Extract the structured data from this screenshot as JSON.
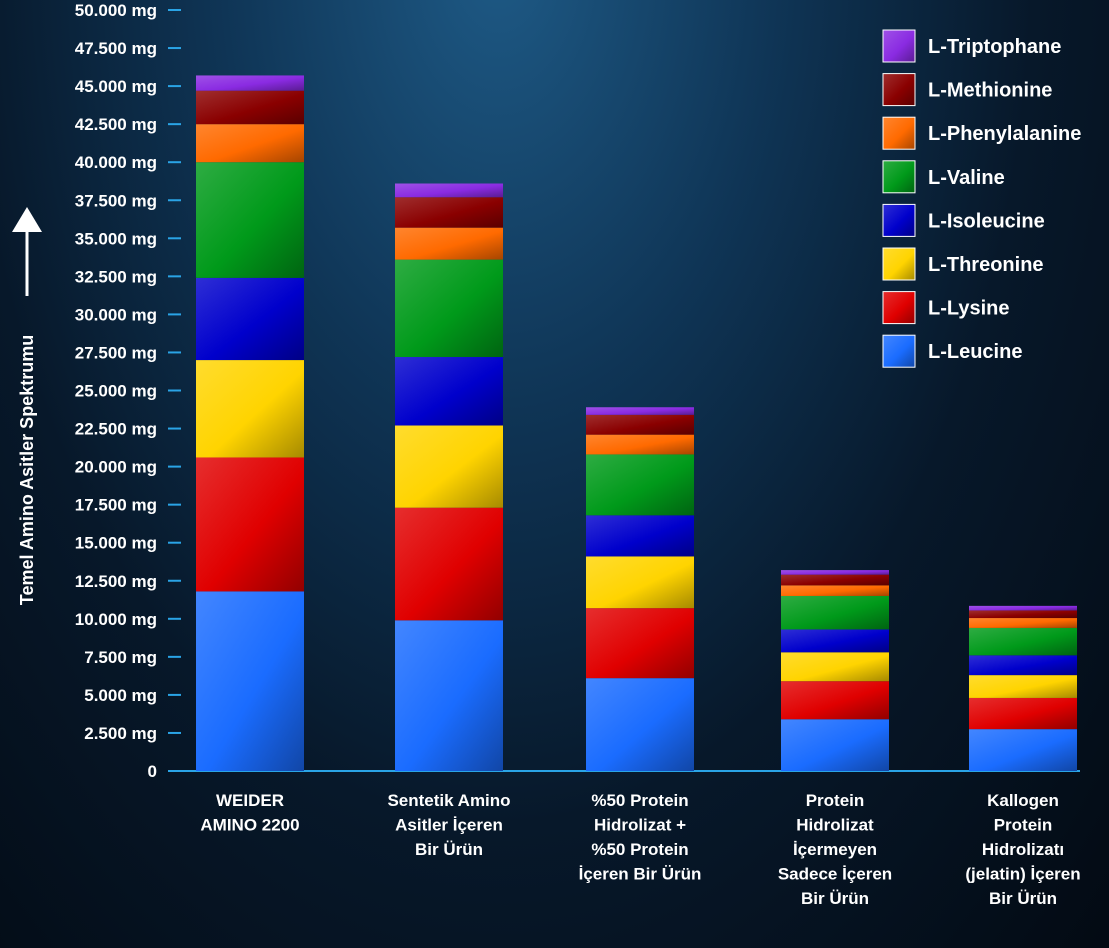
{
  "chart_data": {
    "type": "bar",
    "stacked": true,
    "ylabel": "Temel Amino Asitler Spektrumu",
    "ylim": [
      0,
      50000
    ],
    "yticks": [
      "0",
      "2.500 mg",
      "5.000 mg",
      "7.500 mg",
      "10.000 mg",
      "12.500 mg",
      "15.000 mg",
      "17.500 mg",
      "20.000 mg",
      "22.500 mg",
      "25.000 mg",
      "27.500 mg",
      "30.000 mg",
      "32.500 mg",
      "35.000 mg",
      "37.500 mg",
      "40.000 mg",
      "42.500 mg",
      "45.000 mg",
      "47.500 mg",
      "50.000 mg"
    ],
    "categories": [
      [
        "WEIDER",
        "AMINO 2200"
      ],
      [
        "Sentetik Amino",
        "Asitler İçeren",
        "Bir Ürün"
      ],
      [
        "%50 Protein",
        "Hidrolizat +",
        "%50 Protein",
        "İçeren Bir Ürün"
      ],
      [
        "Protein",
        "Hidrolizat",
        "İçermeyen",
        "Sadece İçeren",
        "Bir Ürün"
      ],
      [
        "Kallogen",
        "Protein",
        "Hidrolizatı",
        "(jelatin) İçeren",
        "Bir Ürün"
      ]
    ],
    "series": [
      {
        "name": "L-Leucine",
        "color": "#1a6cff",
        "values": [
          11800,
          9900,
          6100,
          3400,
          2750
        ]
      },
      {
        "name": "L-Lysine",
        "color": "#e00000",
        "values": [
          8800,
          7400,
          4600,
          2500,
          2050
        ]
      },
      {
        "name": "L-Threonine",
        "color": "#ffd400",
        "values": [
          6400,
          5400,
          3400,
          1900,
          1500
        ]
      },
      {
        "name": "L-Isoleucine",
        "color": "#0000cc",
        "values": [
          5400,
          4500,
          2700,
          1500,
          1300
        ]
      },
      {
        "name": "L-Valine",
        "color": "#009a1a",
        "values": [
          7600,
          6400,
          4000,
          2200,
          1800
        ]
      },
      {
        "name": "L-Phenylalanine",
        "color": "#ff6a00",
        "values": [
          2500,
          2100,
          1300,
          700,
          650
        ]
      },
      {
        "name": "L-Methionine",
        "color": "#8a0000",
        "values": [
          2200,
          2000,
          1300,
          700,
          500
        ]
      },
      {
        "name": "L-Triptophane",
        "color": "#8a2be2",
        "values": [
          1000,
          900,
          500,
          300,
          300
        ]
      }
    ],
    "legend_position": "top-right",
    "grid": false
  }
}
